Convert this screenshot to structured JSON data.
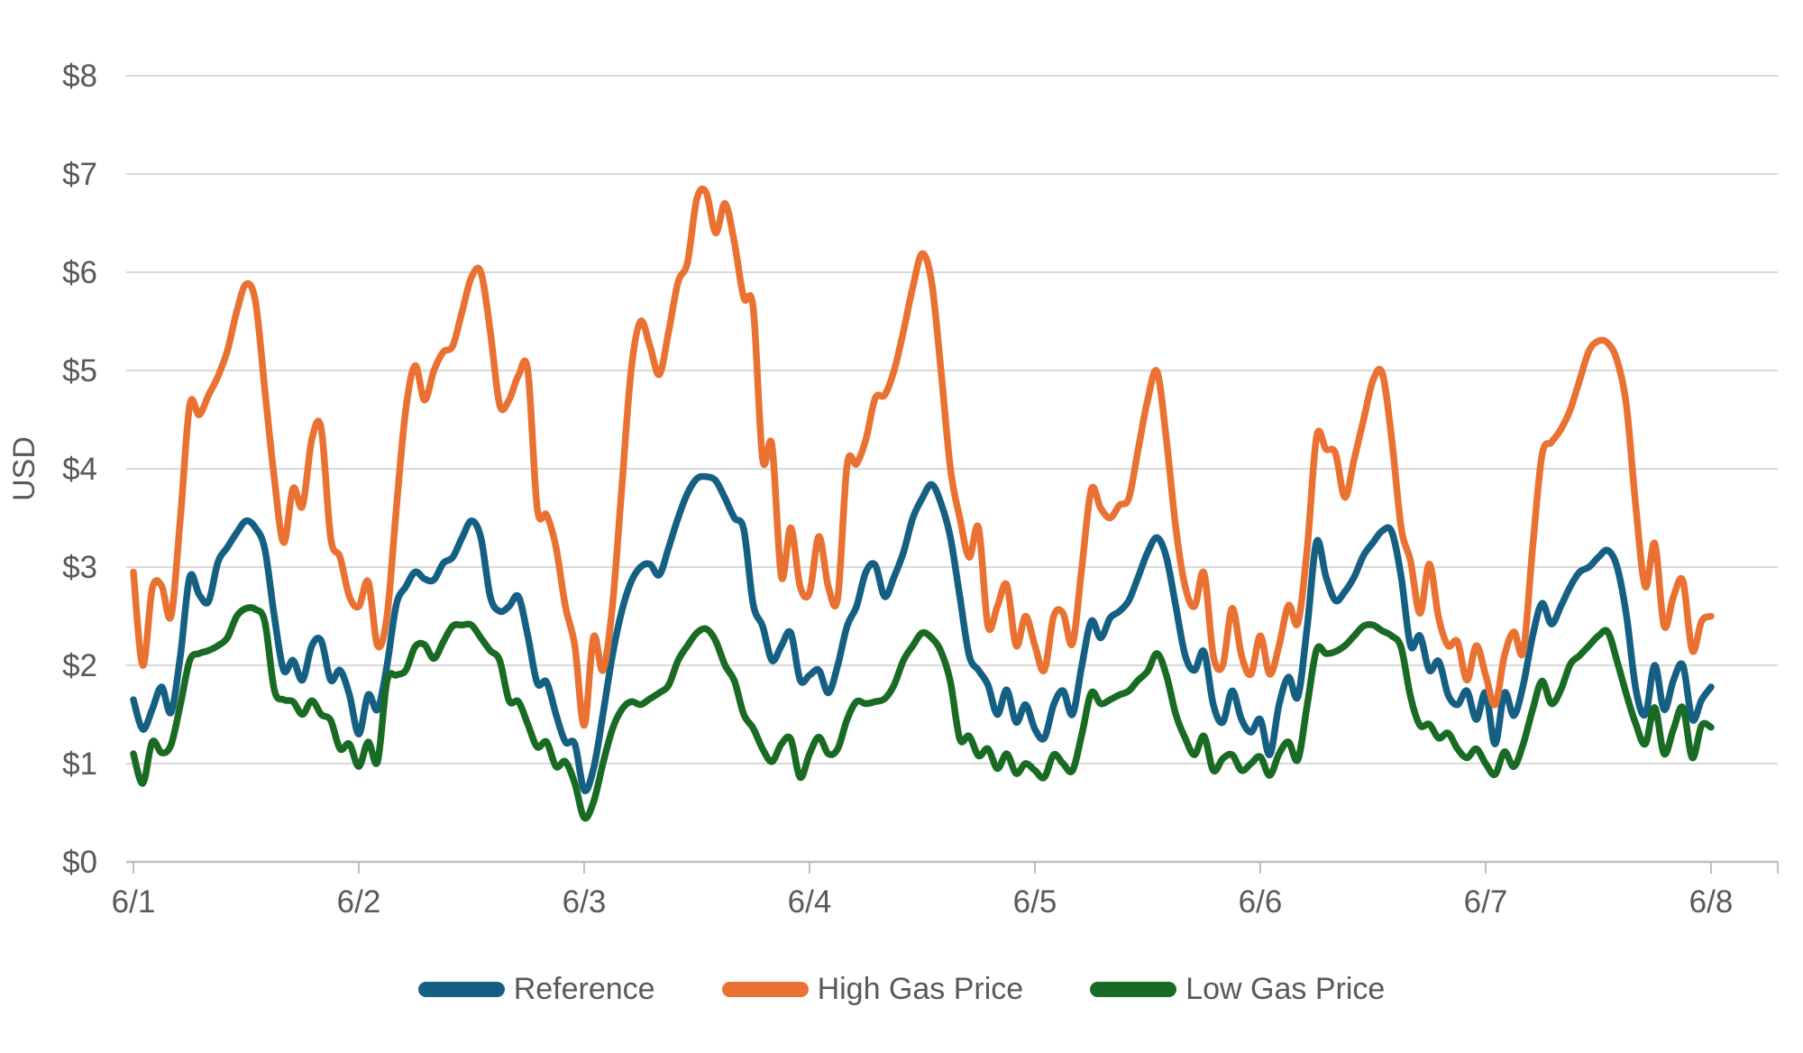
{
  "chart": {
    "title": "",
    "y_axis_title": "USD",
    "text_color": "#595959",
    "gridline_color": "#D9D9D9",
    "axisline_color": "#BFBFBF",
    "background": "#FFFFFF",
    "legend": [
      {
        "label": "Reference",
        "color": "#156082"
      },
      {
        "label": "High Gas Price",
        "color": "#E97132"
      },
      {
        "label": "Low Gas Price",
        "color": "#196B24"
      }
    ]
  },
  "chart_data": {
    "type": "line",
    "title": "",
    "xlabel": "",
    "ylabel": "USD",
    "ylim": [
      0,
      8
    ],
    "y_tick_labels": [
      "$0",
      "$1",
      "$2",
      "$3",
      "$4",
      "$5",
      "$6",
      "$7",
      "$8"
    ],
    "x_tick_labels": [
      "6/1",
      "6/2",
      "6/3",
      "6/4",
      "6/5",
      "6/6",
      "6/7",
      "6/8"
    ],
    "x_unit": "hourly samples from 6/1 00:00 to 6/8 00:00",
    "sample_interval_hours": 1,
    "grid": "horizontal",
    "legend_position": "bottom",
    "smoothed": true,
    "series": [
      {
        "name": "Reference",
        "color": "#156082",
        "values": [
          1.65,
          1.35,
          1.55,
          1.78,
          1.52,
          2.1,
          2.9,
          2.72,
          2.65,
          3.05,
          3.2,
          3.35,
          3.47,
          3.4,
          3.18,
          2.5,
          1.95,
          2.05,
          1.85,
          2.2,
          2.25,
          1.85,
          1.95,
          1.7,
          1.3,
          1.7,
          1.55,
          2.0,
          2.62,
          2.8,
          2.95,
          2.88,
          2.87,
          3.04,
          3.1,
          3.3,
          3.47,
          3.3,
          2.7,
          2.55,
          2.6,
          2.7,
          2.3,
          1.82,
          1.83,
          1.5,
          1.22,
          1.2,
          0.73,
          0.95,
          1.5,
          2.1,
          2.55,
          2.85,
          3.0,
          3.03,
          2.92,
          3.2,
          3.5,
          3.75,
          3.9,
          3.92,
          3.88,
          3.7,
          3.5,
          3.38,
          2.62,
          2.4,
          2.05,
          2.2,
          2.33,
          1.85,
          1.9,
          1.95,
          1.72,
          2.0,
          2.4,
          2.6,
          2.95,
          3.02,
          2.7,
          2.9,
          3.15,
          3.5,
          3.7,
          3.84,
          3.65,
          3.3,
          2.7,
          2.1,
          1.95,
          1.8,
          1.5,
          1.75,
          1.42,
          1.6,
          1.35,
          1.26,
          1.6,
          1.74,
          1.5,
          2.0,
          2.45,
          2.28,
          2.48,
          2.55,
          2.66,
          2.9,
          3.15,
          3.3,
          3.1,
          2.6,
          2.1,
          1.95,
          2.14,
          1.6,
          1.42,
          1.74,
          1.45,
          1.32,
          1.45,
          1.09,
          1.6,
          1.88,
          1.68,
          2.4,
          3.26,
          2.9,
          2.66,
          2.75,
          2.9,
          3.12,
          3.25,
          3.37,
          3.36,
          2.9,
          2.2,
          2.3,
          1.95,
          2.04,
          1.7,
          1.6,
          1.74,
          1.45,
          1.72,
          1.2,
          1.72,
          1.49,
          1.8,
          2.3,
          2.63,
          2.42,
          2.6,
          2.8,
          2.95,
          3.0,
          3.1,
          3.17,
          3.0,
          2.5,
          1.75,
          1.5,
          2.0,
          1.55,
          1.85,
          2.0,
          1.45,
          1.65,
          1.78
        ]
      },
      {
        "name": "High Gas Price",
        "color": "#E97132",
        "values": [
          2.95,
          2.0,
          2.78,
          2.81,
          2.5,
          3.5,
          4.65,
          4.55,
          4.75,
          4.94,
          5.2,
          5.6,
          5.88,
          5.7,
          4.8,
          3.9,
          3.25,
          3.8,
          3.62,
          4.3,
          4.41,
          3.3,
          3.1,
          2.7,
          2.6,
          2.85,
          2.2,
          2.5,
          3.6,
          4.6,
          5.05,
          4.7,
          5.0,
          5.19,
          5.25,
          5.6,
          5.95,
          6.0,
          5.4,
          4.65,
          4.7,
          4.95,
          5.0,
          3.6,
          3.53,
          3.2,
          2.6,
          2.2,
          1.39,
          2.29,
          1.95,
          2.6,
          3.8,
          5.0,
          5.5,
          5.25,
          4.96,
          5.4,
          5.9,
          6.1,
          6.75,
          6.81,
          6.4,
          6.7,
          6.3,
          5.74,
          5.64,
          4.1,
          4.24,
          2.9,
          3.4,
          2.8,
          2.74,
          3.31,
          2.8,
          2.69,
          4.04,
          4.05,
          4.3,
          4.72,
          4.75,
          5.0,
          5.4,
          5.85,
          6.19,
          5.9,
          5.0,
          4.0,
          3.5,
          3.1,
          3.4,
          2.4,
          2.6,
          2.82,
          2.2,
          2.5,
          2.2,
          1.95,
          2.5,
          2.53,
          2.22,
          3.0,
          3.79,
          3.6,
          3.5,
          3.63,
          3.7,
          4.2,
          4.7,
          4.99,
          4.3,
          3.4,
          2.8,
          2.6,
          2.94,
          2.1,
          2.0,
          2.58,
          2.1,
          1.91,
          2.3,
          1.91,
          2.2,
          2.61,
          2.43,
          3.2,
          4.33,
          4.2,
          4.16,
          3.71,
          4.1,
          4.5,
          4.9,
          4.97,
          4.3,
          3.4,
          3.06,
          2.53,
          3.03,
          2.48,
          2.2,
          2.24,
          1.85,
          2.2,
          1.9,
          1.6,
          2.1,
          2.34,
          2.14,
          3.2,
          4.14,
          4.27,
          4.4,
          4.6,
          4.9,
          5.2,
          5.3,
          5.28,
          5.1,
          4.63,
          3.6,
          2.8,
          3.24,
          2.4,
          2.7,
          2.86,
          2.15,
          2.45,
          2.5
        ]
      },
      {
        "name": "Low Gas Price",
        "color": "#196B24",
        "values": [
          1.1,
          0.8,
          1.22,
          1.11,
          1.19,
          1.6,
          2.05,
          2.12,
          2.15,
          2.2,
          2.28,
          2.5,
          2.58,
          2.57,
          2.44,
          1.75,
          1.65,
          1.63,
          1.5,
          1.64,
          1.5,
          1.44,
          1.15,
          1.2,
          0.97,
          1.22,
          1.02,
          1.84,
          1.9,
          1.95,
          2.19,
          2.21,
          2.07,
          2.24,
          2.4,
          2.41,
          2.41,
          2.28,
          2.15,
          2.05,
          1.64,
          1.63,
          1.4,
          1.17,
          1.22,
          0.97,
          1.02,
          0.8,
          0.45,
          0.61,
          1.0,
          1.35,
          1.55,
          1.63,
          1.6,
          1.66,
          1.72,
          1.8,
          2.05,
          2.2,
          2.33,
          2.37,
          2.25,
          2.0,
          1.84,
          1.5,
          1.36,
          1.15,
          1.02,
          1.2,
          1.25,
          0.86,
          1.1,
          1.27,
          1.1,
          1.15,
          1.45,
          1.63,
          1.61,
          1.63,
          1.66,
          1.8,
          2.05,
          2.2,
          2.33,
          2.28,
          2.14,
          1.83,
          1.25,
          1.28,
          1.08,
          1.15,
          0.95,
          1.1,
          0.9,
          1.0,
          0.93,
          0.86,
          1.09,
          1.0,
          0.93,
          1.3,
          1.72,
          1.61,
          1.65,
          1.7,
          1.74,
          1.85,
          1.94,
          2.12,
          1.9,
          1.5,
          1.26,
          1.09,
          1.28,
          0.93,
          1.05,
          1.09,
          0.93,
          1.0,
          1.07,
          0.88,
          1.1,
          1.22,
          1.04,
          1.6,
          2.16,
          2.12,
          2.14,
          2.2,
          2.3,
          2.4,
          2.41,
          2.35,
          2.3,
          2.18,
          1.68,
          1.39,
          1.4,
          1.26,
          1.31,
          1.15,
          1.06,
          1.15,
          1.0,
          0.89,
          1.12,
          0.97,
          1.2,
          1.55,
          1.84,
          1.61,
          1.75,
          2.01,
          2.1,
          2.2,
          2.3,
          2.34,
          2.04,
          1.7,
          1.4,
          1.2,
          1.57,
          1.1,
          1.35,
          1.57,
          1.06,
          1.39,
          1.37
        ]
      }
    ]
  }
}
